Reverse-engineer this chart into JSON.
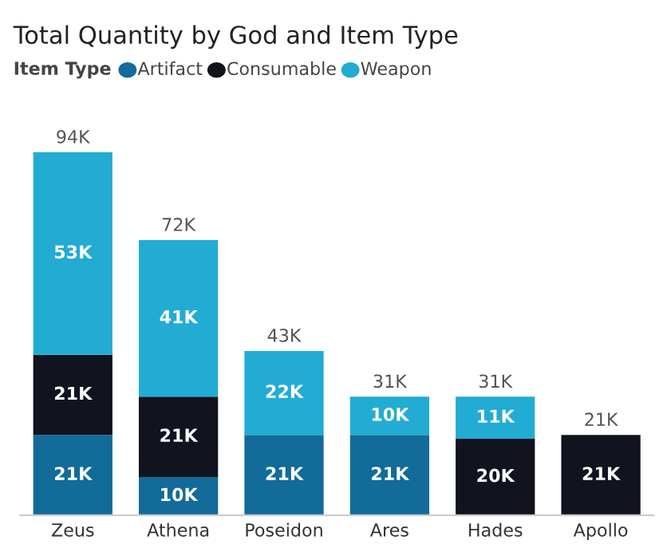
{
  "chart_data": {
    "type": "bar",
    "title": "Total Quantity by God and Item Type",
    "legend_title": "Item Type",
    "legend": "top left",
    "stacked": true,
    "categories": [
      "Zeus",
      "Athena",
      "Poseidon",
      "Ares",
      "Hades",
      "Apollo"
    ],
    "series": [
      {
        "name": "Artifact",
        "color": "#126b98",
        "values": [
          21,
          10,
          21,
          21,
          null,
          null
        ],
        "value_labels": [
          "21K",
          "10K",
          "21K",
          "21K",
          null,
          null
        ]
      },
      {
        "name": "Consumable",
        "color": "#11131f",
        "values": [
          21,
          21,
          null,
          null,
          20,
          21
        ],
        "value_labels": [
          "21K",
          "21K",
          null,
          null,
          "20K",
          "21K"
        ]
      },
      {
        "name": "Weapon",
        "color": "#22acd3",
        "values": [
          53,
          41,
          22,
          10,
          11,
          null
        ],
        "value_labels": [
          "53K",
          "41K",
          "22K",
          "10K",
          "11K",
          null
        ]
      }
    ],
    "totals": [
      "94K",
      "72K",
      "43K",
      "31K",
      "31K",
      "21K"
    ]
  }
}
